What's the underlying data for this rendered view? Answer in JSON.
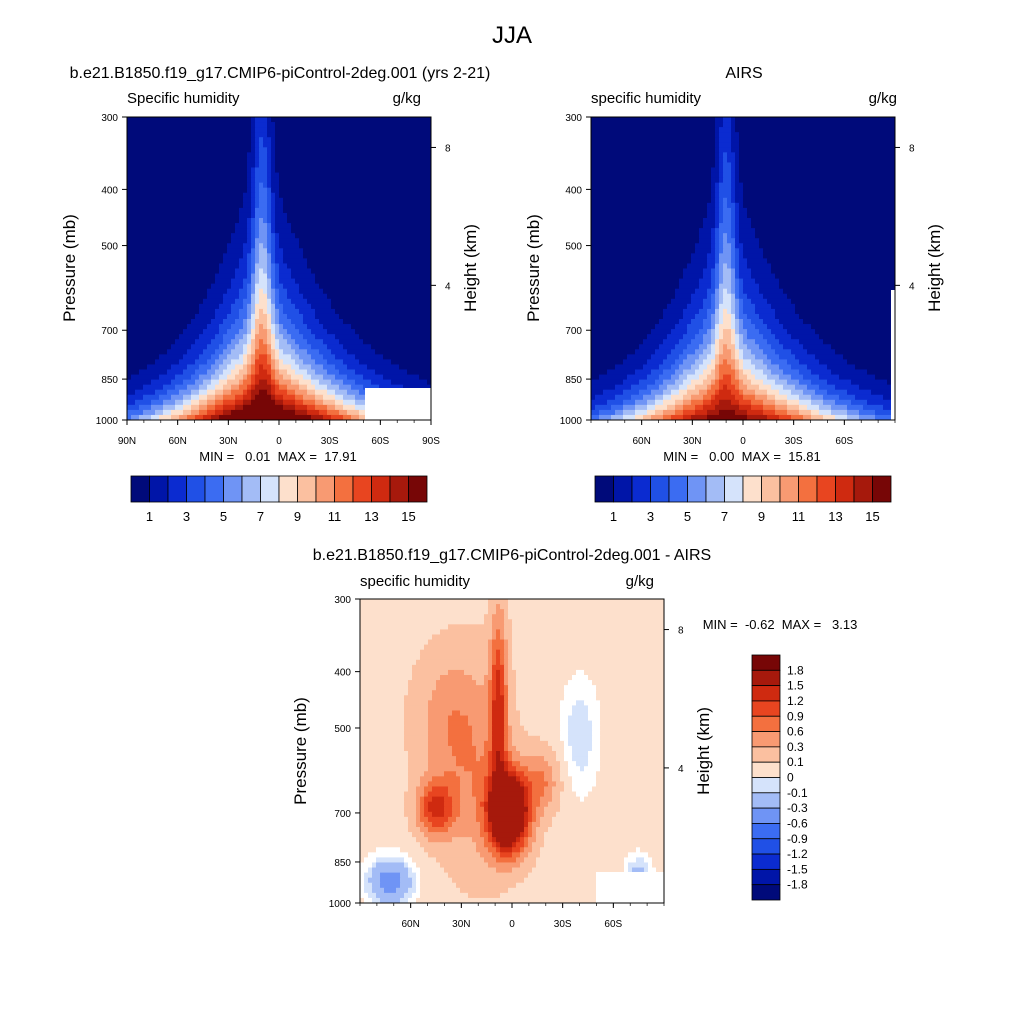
{
  "main_title": "JJA",
  "colors": {
    "abs": [
      "#000a7a",
      "#0015a8",
      "#0b2bd0",
      "#2050e6",
      "#3b6cf2",
      "#6f94f5",
      "#a3bcf6",
      "#d5e3fb",
      "#fde0cc",
      "#fbc0a0",
      "#f89a72",
      "#f3703f",
      "#e84520",
      "#cf2a10",
      "#a6190c",
      "#770606"
    ],
    "diff": [
      "#000a7a",
      "#0015a8",
      "#0b2bd0",
      "#2050e6",
      "#3b6cf2",
      "#6f94f5",
      "#a3bcf6",
      "#d5e3fb",
      "#ffffff",
      "#fde0cc",
      "#fbc0a0",
      "#f89a72",
      "#f3703f",
      "#e84520",
      "#cf2a10",
      "#a6190c",
      "#770606"
    ]
  },
  "chart_data": [
    {
      "id": "model",
      "type": "contour",
      "title": "b.e21.B1850.f19_g17.CMIP6-piControl-2deg.001 (yrs 2-21)",
      "left_label": "Specific humidity",
      "right_label": "g/kg",
      "ylabel": "Pressure (mb)",
      "ylabel_right": "Height (km)",
      "yticks": [
        "300",
        "400",
        "500",
        "700",
        "850",
        "1000"
      ],
      "ytick_values": [
        300,
        400,
        500,
        700,
        850,
        1000
      ],
      "yticks_right": [
        "8",
        "4"
      ],
      "yticks_right_values": [
        8,
        4
      ],
      "xticks": [
        "90N",
        "60N",
        "30N",
        "0",
        "30S",
        "60S",
        "90S"
      ],
      "xtick_values": [
        90,
        60,
        30,
        0,
        -30,
        -60,
        -90
      ],
      "xlim": [
        90,
        -90
      ],
      "ylim": [
        1000,
        300
      ],
      "stats": "MIN =   0.01  MAX =  17.91",
      "min": 0.01,
      "max": 17.91,
      "peak_lat": 10,
      "colorbar_labels": [
        "1",
        "3",
        "5",
        "7",
        "9",
        "11",
        "13",
        "15"
      ]
    },
    {
      "id": "obs",
      "type": "contour",
      "title": "AIRS",
      "left_label": "specific humidity",
      "right_label": "g/kg",
      "ylabel": "Pressure (mb)",
      "ylabel_right": "Height (km)",
      "yticks": [
        "300",
        "400",
        "500",
        "700",
        "850",
        "1000"
      ],
      "ytick_values": [
        300,
        400,
        500,
        700,
        850,
        1000
      ],
      "yticks_right": [
        "8",
        "4"
      ],
      "yticks_right_values": [
        8,
        4
      ],
      "xticks": [
        "60N",
        "30N",
        "0",
        "30S",
        "60S"
      ],
      "xtick_values": [
        60,
        30,
        0,
        -30,
        -60
      ],
      "xlim": [
        90,
        -90
      ],
      "ylim": [
        1000,
        300
      ],
      "stats": "MIN =   0.00  MAX =  15.81",
      "min": 0.0,
      "max": 15.81,
      "peak_lat": 10,
      "colorbar_labels": [
        "1",
        "3",
        "5",
        "7",
        "9",
        "11",
        "13",
        "15"
      ]
    },
    {
      "id": "diff",
      "type": "contour",
      "title": "b.e21.B1850.f19_g17.CMIP6-piControl-2deg.001 - AIRS",
      "left_label": "specific humidity",
      "right_label": "g/kg",
      "ylabel": "Pressure (mb)",
      "ylabel_right": "Height (km)",
      "yticks": [
        "300",
        "400",
        "500",
        "700",
        "850",
        "1000"
      ],
      "ytick_values": [
        300,
        400,
        500,
        700,
        850,
        1000
      ],
      "yticks_right": [
        "8",
        "4"
      ],
      "yticks_right_values": [
        8,
        4
      ],
      "xticks": [
        "60N",
        "30N",
        "0",
        "30S",
        "60S"
      ],
      "xtick_values": [
        60,
        30,
        0,
        -30,
        -60
      ],
      "xlim": [
        90,
        -90
      ],
      "ylim": [
        1000,
        300
      ],
      "stats": "MIN =  -0.62  MAX =   3.13",
      "min": -0.62,
      "max": 3.13,
      "colorbar_labels": [
        "1.8",
        "1.5",
        "1.2",
        "0.9",
        "0.6",
        "0.3",
        "0.1",
        "0",
        "-0.1",
        "-0.3",
        "-0.6",
        "-0.9",
        "-1.2",
        "-1.5",
        "-1.8"
      ]
    }
  ]
}
